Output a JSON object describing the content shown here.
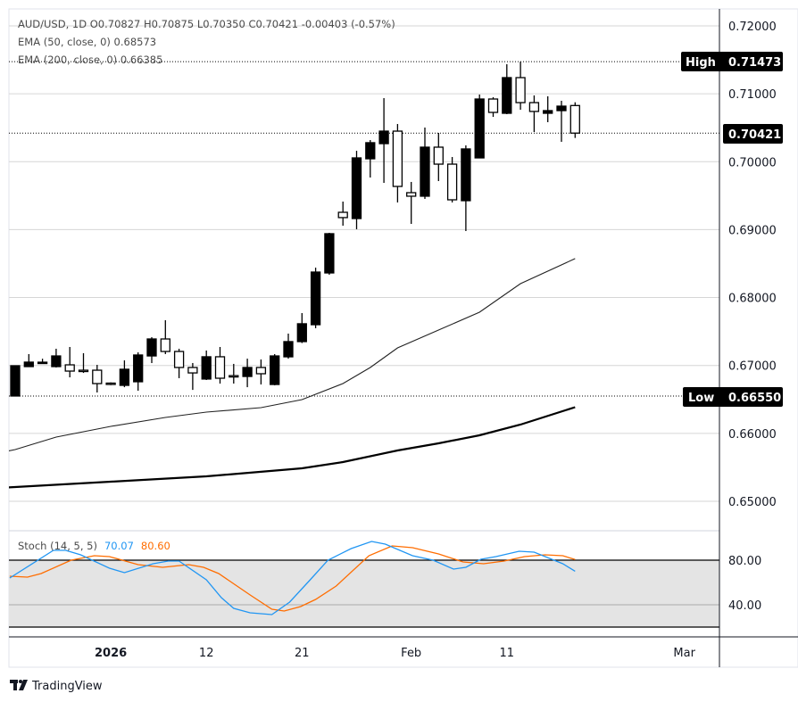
{
  "legend": {
    "main": "AUD/USD, 1D  O0.70827  H0.70875  L0.70350  C0.70421  -0.00403 (-0.57%)",
    "ema50": "EMA (50, close, 0)  0.68573",
    "ema200": "EMA (200, close, 0)  0.66385",
    "stoch_label": "Stoch (14, 5, 5)",
    "stoch_k": "70.07",
    "stoch_d": "80.60"
  },
  "tags": {
    "high_label": "High",
    "high_value": "0.71473",
    "last_value": "0.70421",
    "low_label": "Low",
    "low_value": "0.66550"
  },
  "brand": "TradingView",
  "colors": {
    "k": "#2196f3",
    "d": "#ff6d00",
    "band": "#e4e4e4",
    "candle": "#000000"
  },
  "chart_data": {
    "type": "candlestick",
    "symbol": "AUD/USD",
    "interval": "1D",
    "price_axis": {
      "ticks": [
        "0.72000",
        "0.71000",
        "0.70000",
        "0.69000",
        "0.68000",
        "0.67000",
        "0.66000",
        "0.65000"
      ],
      "range": [
        0.65,
        0.72
      ]
    },
    "x_ticks": [
      {
        "bar": 7,
        "label": "2026",
        "bold": true
      },
      {
        "bar": 14,
        "label": "12"
      },
      {
        "bar": 21,
        "label": "21"
      },
      {
        "bar": 29,
        "label": "Feb"
      },
      {
        "bar": 36,
        "label": "11"
      },
      {
        "bar": 49,
        "label": "Mar"
      }
    ],
    "ohlc": [
      [
        0.6655,
        0.66996,
        0.6655,
        0.66996
      ],
      [
        0.66983,
        0.67167,
        0.66983,
        0.67049
      ],
      [
        0.67045,
        0.67099,
        0.6704,
        0.67048
      ],
      [
        0.66983,
        0.67246,
        0.6697,
        0.6714
      ],
      [
        0.67009,
        0.67272,
        0.66825,
        0.66917
      ],
      [
        0.6693,
        0.6718,
        0.6689,
        0.6692
      ],
      [
        0.6693,
        0.67009,
        0.66602,
        0.66733
      ],
      [
        0.6674,
        0.6675,
        0.6671,
        0.66733
      ],
      [
        0.66707,
        0.67075,
        0.6668,
        0.66944
      ],
      [
        0.6676,
        0.67193,
        0.66628,
        0.67154
      ],
      [
        0.6714,
        0.67416,
        0.67035,
        0.6739
      ],
      [
        0.6739,
        0.67666,
        0.67167,
        0.67206
      ],
      [
        0.67206,
        0.67246,
        0.66812,
        0.6697
      ],
      [
        0.6697,
        0.67036,
        0.6664,
        0.6689
      ],
      [
        0.668,
        0.6722,
        0.66786,
        0.67128
      ],
      [
        0.67128,
        0.67272,
        0.66733,
        0.66812
      ],
      [
        0.6685,
        0.67023,
        0.66733,
        0.66838
      ],
      [
        0.66838,
        0.671,
        0.6668,
        0.6697
      ],
      [
        0.6697,
        0.67088,
        0.6672,
        0.66878
      ],
      [
        0.6672,
        0.67167,
        0.66707,
        0.6714
      ],
      [
        0.67127,
        0.67469,
        0.671,
        0.67351
      ],
      [
        0.67351,
        0.67771,
        0.6733,
        0.67614
      ],
      [
        0.676,
        0.6844,
        0.67548,
        0.68375
      ],
      [
        0.68362,
        0.68953,
        0.68336,
        0.6894
      ],
      [
        0.69255,
        0.69413,
        0.69058,
        0.69177
      ],
      [
        0.69163,
        0.70161,
        0.69005,
        0.70056
      ],
      [
        0.70043,
        0.70319,
        0.69767,
        0.7028
      ],
      [
        0.70266,
        0.70936,
        0.69688,
        0.7045
      ],
      [
        0.7045,
        0.70555,
        0.694,
        0.69636
      ],
      [
        0.69544,
        0.69702,
        0.69084,
        0.69492
      ],
      [
        0.69492,
        0.70503,
        0.69452,
        0.70214
      ],
      [
        0.70214,
        0.70424,
        0.69715,
        0.69964
      ],
      [
        0.69964,
        0.70069,
        0.694,
        0.69439
      ],
      [
        0.69426,
        0.7024,
        0.68979,
        0.70188
      ],
      [
        0.70056,
        0.70989,
        0.70056,
        0.70923
      ],
      [
        0.70923,
        0.7095,
        0.7066,
        0.70726
      ],
      [
        0.70713,
        0.71435,
        0.707,
        0.71238
      ],
      [
        0.71238,
        0.71473,
        0.70765,
        0.7087
      ],
      [
        0.7087,
        0.70976,
        0.70437,
        0.7074
      ],
      [
        0.70713,
        0.70963,
        0.70582,
        0.70752
      ],
      [
        0.70752,
        0.70897,
        0.70293,
        0.70818
      ],
      [
        0.70827,
        0.70875,
        0.7035,
        0.70421
      ]
    ],
    "ema50": [
      [
        -0.5,
        0.6574
      ],
      [
        0,
        0.65762
      ],
      [
        3,
        0.65946
      ],
      [
        7,
        0.66103
      ],
      [
        11,
        0.66234
      ],
      [
        14,
        0.66313
      ],
      [
        18,
        0.66379
      ],
      [
        21,
        0.66497
      ],
      [
        24,
        0.66733
      ],
      [
        26,
        0.6697
      ],
      [
        28,
        0.67259
      ],
      [
        31,
        0.67521
      ],
      [
        34,
        0.67784
      ],
      [
        37,
        0.68204
      ],
      [
        41,
        0.68573
      ]
    ],
    "ema200": [
      [
        -0.5,
        0.65205
      ],
      [
        0,
        0.6521
      ],
      [
        7,
        0.65289
      ],
      [
        14,
        0.65368
      ],
      [
        21,
        0.65486
      ],
      [
        24,
        0.65578
      ],
      [
        28,
        0.65748
      ],
      [
        31,
        0.65853
      ],
      [
        34,
        0.65971
      ],
      [
        37,
        0.66129
      ],
      [
        41,
        0.66385
      ]
    ],
    "stoch": {
      "axis_ticks": [
        "80.00",
        "40.00"
      ],
      "band": [
        20,
        80
      ],
      "k": [
        [
          -0.4,
          64
        ],
        [
          2.8,
          88.8
        ],
        [
          3.7,
          88.8
        ],
        [
          4.8,
          84.8
        ],
        [
          6.9,
          72.8
        ],
        [
          8.0,
          68.8
        ],
        [
          10.1,
          76.8
        ],
        [
          11.2,
          79.2
        ],
        [
          12.0,
          79.2
        ],
        [
          14.0,
          62.4
        ],
        [
          15.1,
          46.4
        ],
        [
          16.0,
          36.8
        ],
        [
          17.2,
          32.8
        ],
        [
          18.8,
          31.2
        ],
        [
          20.1,
          42.4
        ],
        [
          21.6,
          62.4
        ],
        [
          22.9,
          80
        ],
        [
          24.6,
          90.4
        ],
        [
          26.1,
          96.8
        ],
        [
          27.1,
          94.4
        ],
        [
          29.1,
          84
        ],
        [
          30.6,
          80
        ],
        [
          32.1,
          72
        ],
        [
          33.0,
          73.6
        ],
        [
          34.1,
          80.8
        ],
        [
          35.2,
          83.2
        ],
        [
          36.9,
          88
        ],
        [
          38.0,
          87.2
        ],
        [
          40.1,
          76.8
        ],
        [
          41.0,
          70.07
        ]
      ],
      "d": [
        [
          -0.4,
          65.6
        ],
        [
          0.9,
          64.8
        ],
        [
          1.9,
          68
        ],
        [
          4.1,
          80
        ],
        [
          5.8,
          84
        ],
        [
          6.9,
          83.2
        ],
        [
          9.0,
          76
        ],
        [
          10.8,
          73.6
        ],
        [
          12.7,
          76
        ],
        [
          13.8,
          73.6
        ],
        [
          14.9,
          68
        ],
        [
          17.2,
          48.8
        ],
        [
          18.8,
          36
        ],
        [
          19.7,
          34.4
        ],
        [
          20.9,
          38.4
        ],
        [
          22.0,
          44.8
        ],
        [
          23.5,
          56.8
        ],
        [
          25.9,
          84
        ],
        [
          27.6,
          92.8
        ],
        [
          29.1,
          91.2
        ],
        [
          31.0,
          85.6
        ],
        [
          32.8,
          78.4
        ],
        [
          34.3,
          76.8
        ],
        [
          35.8,
          79.2
        ],
        [
          37.3,
          83.2
        ],
        [
          38.8,
          84.8
        ],
        [
          40.1,
          84
        ],
        [
          41.0,
          80.6
        ]
      ]
    }
  }
}
